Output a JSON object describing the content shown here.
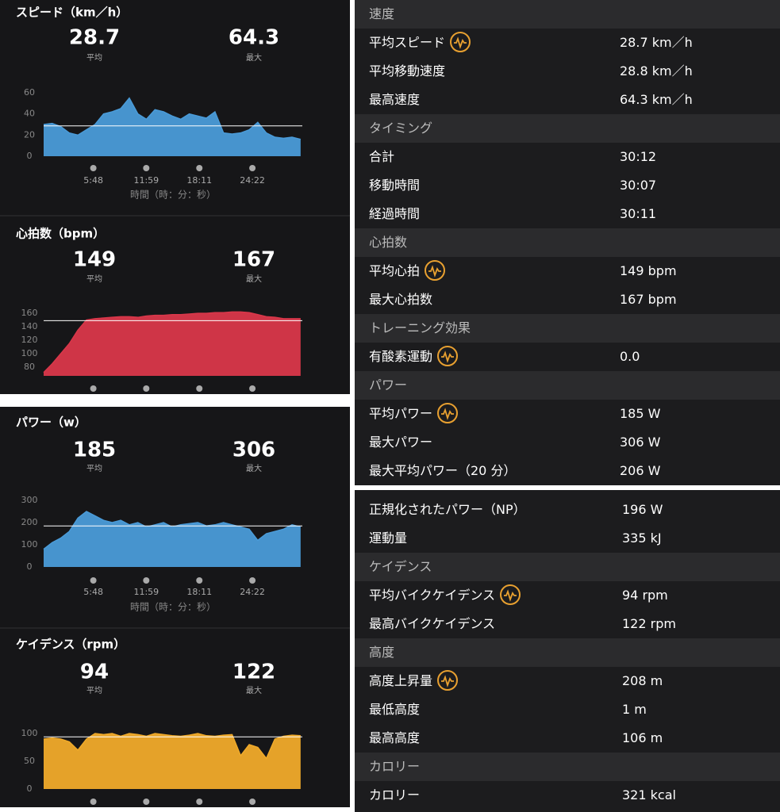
{
  "charts": [
    {
      "type": "area",
      "title": "スピード（km／h）",
      "stats": [
        {
          "value": 28.7,
          "label": "平均"
        },
        {
          "value": 64.3,
          "label": "最大"
        }
      ],
      "color": "#4a9bd8",
      "x": [
        0,
        1,
        2,
        3,
        4,
        5,
        6,
        7,
        8,
        9,
        10,
        11,
        12,
        13,
        14,
        15,
        16,
        17,
        18,
        19,
        20,
        21,
        22,
        23,
        24,
        25,
        26,
        27,
        28,
        29,
        30
      ],
      "values": [
        30,
        31,
        28,
        22,
        20,
        25,
        30,
        40,
        42,
        45,
        55,
        40,
        35,
        44,
        42,
        38,
        35,
        40,
        38,
        36,
        42,
        22,
        21,
        22,
        25,
        32,
        22,
        18,
        17,
        18,
        16
      ],
      "xlim": [
        0,
        30.2
      ],
      "ylim": [
        0,
        60
      ],
      "yticks": [
        0,
        20,
        40,
        60
      ],
      "xticks": [
        {
          "value": 5.8,
          "label": "5:48"
        },
        {
          "value": 11.98,
          "label": "11:59"
        },
        {
          "value": 18.18,
          "label": "18:11"
        },
        {
          "value": 24.37,
          "label": "24:22"
        }
      ],
      "xlabel": "時間（時：分：秒）"
    },
    {
      "type": "area",
      "title": "心拍数（bpm）",
      "stats": [
        {
          "value": 149,
          "label": "平均"
        },
        {
          "value": 167,
          "label": "最大"
        }
      ],
      "color": "#d9374a",
      "x": [
        0,
        1,
        2,
        3,
        4,
        5,
        6,
        7,
        8,
        9,
        10,
        11,
        12,
        13,
        14,
        15,
        16,
        17,
        18,
        19,
        20,
        21,
        22,
        23,
        24,
        25,
        26,
        27,
        28,
        29,
        30
      ],
      "values": [
        72,
        85,
        100,
        115,
        135,
        150,
        152,
        153,
        154,
        155,
        155,
        154,
        156,
        157,
        157,
        158,
        158,
        159,
        160,
        160,
        161,
        161,
        162,
        162,
        161,
        158,
        155,
        154,
        152,
        152,
        152
      ],
      "xlim": [
        0,
        30.2
      ],
      "ylim": [
        67,
        166
      ],
      "yticks": [
        80,
        100,
        120,
        140,
        160
      ],
      "xticks": [
        5.8,
        11.98,
        18.18,
        24.37
      ]
    },
    {
      "type": "area",
      "title": "パワー（w）",
      "stats": [
        {
          "value": 185,
          "label": "平均"
        },
        {
          "value": 306,
          "label": "最大"
        }
      ],
      "color": "#4a9bd8",
      "x": [
        0,
        1,
        2,
        3,
        4,
        5,
        6,
        7,
        8,
        9,
        10,
        11,
        12,
        13,
        14,
        15,
        16,
        17,
        18,
        19,
        20,
        21,
        22,
        23,
        24,
        25,
        26,
        27,
        28,
        29,
        30
      ],
      "values": [
        80,
        110,
        130,
        160,
        220,
        250,
        230,
        210,
        200,
        210,
        190,
        200,
        180,
        190,
        200,
        180,
        190,
        195,
        200,
        185,
        190,
        200,
        190,
        180,
        170,
        120,
        150,
        160,
        170,
        190,
        180
      ],
      "xlim": [
        0,
        30.2
      ],
      "ylim": [
        0,
        300
      ],
      "yticks": [
        0,
        100,
        200,
        300
      ],
      "xticks": [
        {
          "value": 5.8,
          "label": "5:48"
        },
        {
          "value": 11.98,
          "label": "11:59"
        },
        {
          "value": 18.18,
          "label": "18:11"
        },
        {
          "value": 24.37,
          "label": "24:22"
        }
      ],
      "xlabel": "時間（時：分：秒）"
    },
    {
      "type": "area",
      "title": "ケイデンス（rpm）",
      "stats": [
        {
          "value": 94,
          "label": "平均"
        },
        {
          "value": 122,
          "label": "最大"
        }
      ],
      "color": "#f0aa2a",
      "x": [
        0,
        1,
        2,
        3,
        4,
        5,
        6,
        7,
        8,
        9,
        10,
        11,
        12,
        13,
        14,
        15,
        16,
        17,
        18,
        19,
        20,
        21,
        22,
        23,
        24,
        25,
        26,
        27,
        28,
        29,
        30
      ],
      "values": [
        90,
        92,
        90,
        85,
        70,
        90,
        100,
        98,
        100,
        95,
        100,
        98,
        95,
        100,
        98,
        96,
        95,
        97,
        100,
        96,
        95,
        97,
        98,
        60,
        80,
        75,
        55,
        90,
        95,
        97,
        96
      ],
      "xlim": [
        0,
        30.2
      ],
      "ylim": [
        0,
        100
      ],
      "yticks": [
        0,
        50,
        100
      ],
      "xticks": [
        5.8,
        11.98,
        18.18,
        24.37
      ]
    }
  ],
  "tables": [
    {
      "sections": [
        {
          "header": "速度",
          "rows": [
            {
              "label": "平均スピード",
              "value": "28.7 km／h",
              "icon": true
            },
            {
              "label": "平均移動速度",
              "value": "28.8 km／h"
            },
            {
              "label": "最高速度",
              "value": "64.3 km／h"
            }
          ]
        },
        {
          "header": "タイミング",
          "rows": [
            {
              "label": "合計",
              "value": "30:12"
            },
            {
              "label": "移動時間",
              "value": "30:07"
            },
            {
              "label": "経過時間",
              "value": "30:11"
            }
          ]
        },
        {
          "header": "心拍数",
          "rows": [
            {
              "label": "平均心拍",
              "value": "149 bpm",
              "icon": true
            },
            {
              "label": "最大心拍数",
              "value": "167 bpm"
            }
          ]
        },
        {
          "header": "トレーニング効果",
          "rows": [
            {
              "label": "有酸素運動",
              "value": "0.0",
              "icon": true
            }
          ]
        },
        {
          "header": "パワー",
          "rows": [
            {
              "label": "平均パワー",
              "value": "185 W",
              "icon": true
            },
            {
              "label": "最大パワー",
              "value": "306 W"
            },
            {
              "label": "最大平均パワー（20 分）",
              "value": "206 W"
            }
          ]
        }
      ]
    },
    {
      "sections": [
        {
          "rows": [
            {
              "label": "正規化されたパワー（NP）",
              "value": "196 W"
            },
            {
              "label": "運動量",
              "value": "335 kJ"
            }
          ]
        },
        {
          "header": "ケイデンス",
          "rows": [
            {
              "label": "平均バイクケイデンス",
              "value": "94 rpm",
              "icon": true
            },
            {
              "label": "最高バイクケイデンス",
              "value": "122 rpm"
            }
          ]
        },
        {
          "header": "高度",
          "rows": [
            {
              "label": "高度上昇量",
              "value": "208 m",
              "icon": true
            },
            {
              "label": "最低高度",
              "value": "1 m"
            },
            {
              "label": "最高高度",
              "value": "106 m"
            }
          ]
        },
        {
          "header": "カロリー",
          "rows": [
            {
              "label": "カロリー",
              "value": "321 kcal"
            }
          ]
        }
      ]
    }
  ]
}
